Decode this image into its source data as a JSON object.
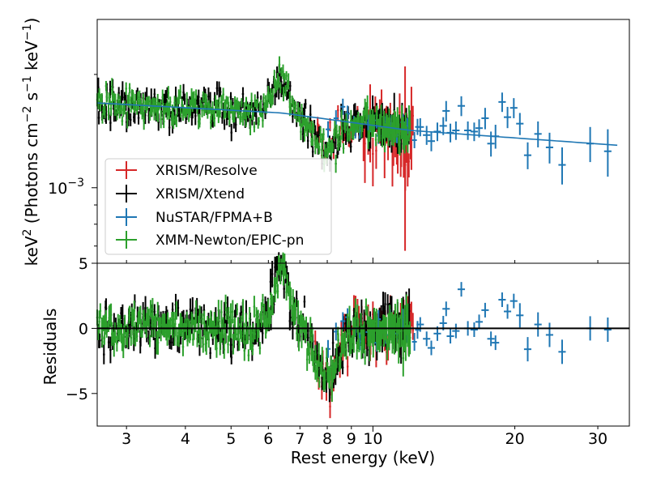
{
  "chart_data": [
    {
      "panel": "spectrum",
      "type": "scatter",
      "x_scale": "log",
      "y_scale": "log",
      "xlim": [
        2.6,
        35
      ],
      "ylim": [
        0.00063,
        0.0028
      ],
      "ylabel": "keV² (Photons cm⁻² s⁻¹ keV⁻¹)",
      "ylabel_parts": {
        "main": "keV",
        "sup1": "2",
        "mid1": " (Photons cm",
        "sup2": "−2",
        "mid2": " s",
        "sup3": "−1",
        "mid3": " keV",
        "sup4": "−1",
        "end": ")"
      },
      "yticks": [
        {
          "value": 0.001,
          "label_base": "10",
          "label_exp": "−3"
        }
      ],
      "legend": {
        "location": "lower-left",
        "entries": [
          "XRISM/Resolve",
          "XRISM/Xtend",
          "NuSTAR/FPMA+B",
          "XMM-Newton/EPIC-pn"
        ]
      },
      "series": [
        {
          "name": "XMM-Newton/EPIC-pn",
          "color": "#2ca02c",
          "x_range": [
            2.6,
            12.0
          ],
          "level_at_3keV": 0.00168,
          "note": "dense points, feature near 6.4 keV"
        },
        {
          "name": "XRISM/Xtend",
          "color": "#000000",
          "x_range": [
            2.6,
            12.0
          ],
          "level_at_3keV": 0.00165
        },
        {
          "name": "XRISM/Resolve",
          "color": "#d62728",
          "x_range": [
            7.5,
            12.2
          ],
          "level": 0.0013,
          "note": "large error bars above 9 keV, lowest ~0.00068"
        },
        {
          "name": "NuSTAR/FPMA+B",
          "color": "#1f77b4",
          "points": [
            {
              "x": 12.6,
              "y": 0.00145,
              "dy": 8e-05
            },
            {
              "x": 13.0,
              "y": 0.00138,
              "dy": 8e-05
            },
            {
              "x": 13.3,
              "y": 0.00133,
              "dy": 8e-05
            },
            {
              "x": 13.7,
              "y": 0.00141,
              "dy": 8e-05
            },
            {
              "x": 14.1,
              "y": 0.00146,
              "dy": 8e-05
            },
            {
              "x": 14.3,
              "y": 0.0016,
              "dy": 0.0001
            },
            {
              "x": 14.6,
              "y": 0.0014,
              "dy": 8e-05
            },
            {
              "x": 15.0,
              "y": 0.00142,
              "dy": 8e-05
            },
            {
              "x": 15.4,
              "y": 0.00165,
              "dy": 0.0001
            },
            {
              "x": 15.9,
              "y": 0.00142,
              "dy": 8e-05
            },
            {
              "x": 16.4,
              "y": 0.00141,
              "dy": 8e-05
            },
            {
              "x": 16.8,
              "y": 0.00144,
              "dy": 8e-05
            },
            {
              "x": 17.3,
              "y": 0.00153,
              "dy": 0.0001
            },
            {
              "x": 17.8,
              "y": 0.00131,
              "dy": 0.0001
            },
            {
              "x": 18.2,
              "y": 0.00137,
              "dy": 0.0001
            },
            {
              "x": 18.8,
              "y": 0.00169,
              "dy": 0.0001
            },
            {
              "x": 19.3,
              "y": 0.00154,
              "dy": 0.0001
            },
            {
              "x": 19.9,
              "y": 0.00163,
              "dy": 0.0001
            },
            {
              "x": 20.5,
              "y": 0.00148,
              "dy": 0.0001
            },
            {
              "x": 21.3,
              "y": 0.00122,
              "dy": 0.0001
            },
            {
              "x": 22.4,
              "y": 0.00139,
              "dy": 0.00011
            },
            {
              "x": 23.7,
              "y": 0.00128,
              "dy": 0.00012
            },
            {
              "x": 25.2,
              "y": 0.00115,
              "dy": 0.00013
            },
            {
              "x": 28.9,
              "y": 0.00131,
              "dy": 0.00014
            },
            {
              "x": 31.5,
              "y": 0.00125,
              "dy": 0.00018
            }
          ]
        }
      ],
      "model": {
        "color": "#1f77b4",
        "x": [
          2.6,
          6.4,
          12.0,
          35.0
        ],
        "y": [
          0.00168,
          0.00158,
          0.00142,
          0.00129
        ]
      }
    },
    {
      "panel": "residuals",
      "type": "scatter",
      "x_scale": "log",
      "xlim": [
        2.6,
        35
      ],
      "ylim": [
        -7.5,
        5
      ],
      "xlabel": "Rest energy (keV)",
      "ylabel": "Residuals",
      "yticks": [
        {
          "value": -5,
          "label": "−5"
        },
        {
          "value": 0,
          "label": "0"
        },
        {
          "value": 5,
          "label": "5"
        }
      ],
      "xticks": [
        {
          "value": 3,
          "label": "3"
        },
        {
          "value": 4,
          "label": "4"
        },
        {
          "value": 5,
          "label": "5"
        },
        {
          "value": 6,
          "label": "6"
        },
        {
          "value": 7,
          "label": "7"
        },
        {
          "value": 8,
          "label": "8"
        },
        {
          "value": 9,
          "label": "9"
        },
        {
          "value": 10,
          "label": "10"
        },
        {
          "value": 20,
          "label": "20"
        },
        {
          "value": 30,
          "label": "30"
        }
      ],
      "zero_line": 0,
      "nustar_residuals": [
        {
          "x": 12.6,
          "y": 0.3
        },
        {
          "x": 13.0,
          "y": -0.8
        },
        {
          "x": 13.3,
          "y": -1.5
        },
        {
          "x": 13.7,
          "y": -0.4
        },
        {
          "x": 14.1,
          "y": 0.4
        },
        {
          "x": 14.3,
          "y": 1.5
        },
        {
          "x": 14.6,
          "y": -0.6
        },
        {
          "x": 15.0,
          "y": -0.2
        },
        {
          "x": 15.4,
          "y": 3.0
        },
        {
          "x": 15.9,
          "y": 0.0
        },
        {
          "x": 16.4,
          "y": -0.1
        },
        {
          "x": 16.8,
          "y": 0.5
        },
        {
          "x": 17.3,
          "y": 1.4
        },
        {
          "x": 17.8,
          "y": -0.8
        },
        {
          "x": 18.2,
          "y": -1.1
        },
        {
          "x": 18.8,
          "y": 2.2
        },
        {
          "x": 19.3,
          "y": 1.3
        },
        {
          "x": 19.9,
          "y": 2.1
        },
        {
          "x": 20.5,
          "y": 1.0
        },
        {
          "x": 21.3,
          "y": -1.6
        },
        {
          "x": 22.4,
          "y": 0.3
        },
        {
          "x": 23.7,
          "y": -0.5
        },
        {
          "x": 25.2,
          "y": -1.8
        },
        {
          "x": 28.9,
          "y": 0.0
        },
        {
          "x": 31.5,
          "y": -0.1
        }
      ],
      "low_energy_residual_band": {
        "x_range": [
          2.6,
          12.0
        ],
        "typical_range": [
          -3.5,
          3.5
        ],
        "peak_near_6_4keV": 4.5,
        "dip_near_7_5keV": -5.5
      }
    }
  ]
}
